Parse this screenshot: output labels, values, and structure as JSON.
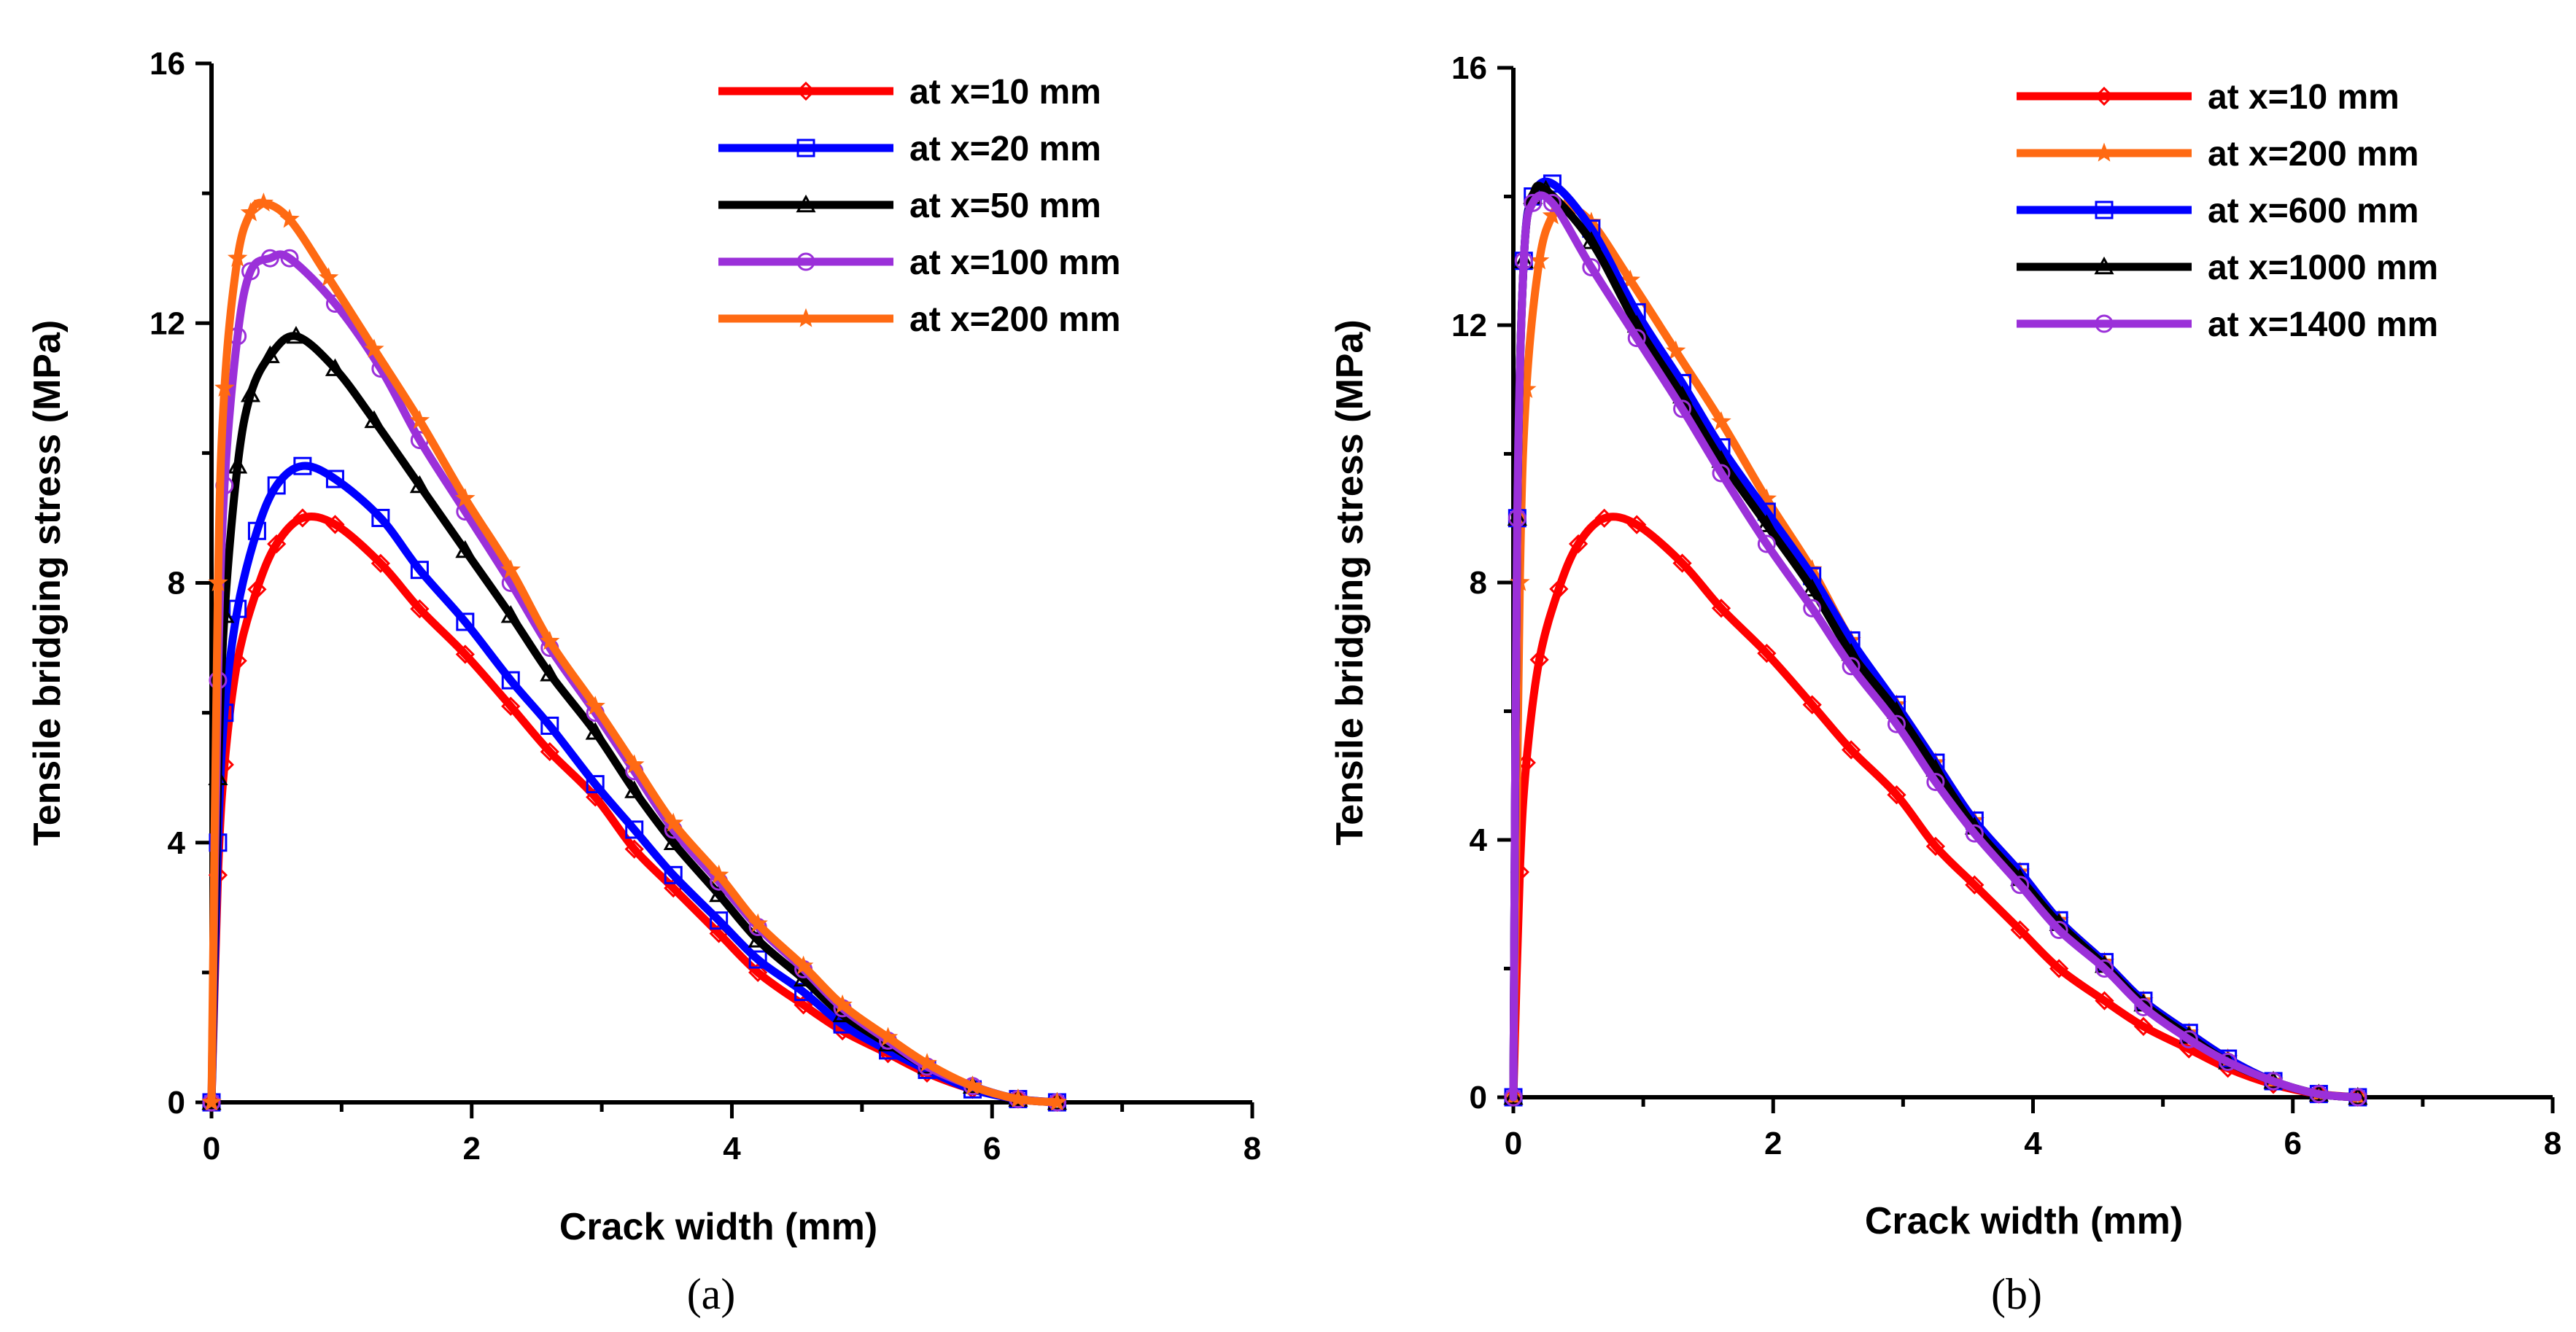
{
  "chart_data": [
    {
      "type": "line",
      "panel_label": "(a)",
      "xlabel": "Crack width (mm)",
      "ylabel": "Tensile bridging stress (MPa)",
      "xlim": [
        0,
        8
      ],
      "ylim": [
        0,
        16
      ],
      "xticks": [
        "0",
        "2",
        "4",
        "6",
        "8"
      ],
      "yticks": [
        "0",
        "4",
        "8",
        "12",
        "16"
      ],
      "legend_position": "top-right",
      "grid": false,
      "series": [
        {
          "name": "at x=10 mm",
          "color": "#ff0000",
          "marker": "diamond",
          "x": [
            0,
            0.05,
            0.1,
            0.2,
            0.35,
            0.5,
            0.7,
            0.95,
            1.3,
            1.6,
            1.95,
            2.3,
            2.6,
            2.95,
            3.25,
            3.55,
            3.9,
            4.2,
            4.55,
            4.85,
            5.2,
            5.5,
            5.85,
            6.2,
            6.5
          ],
          "y": [
            0,
            3.5,
            5.2,
            6.8,
            7.9,
            8.6,
            9.0,
            8.9,
            8.3,
            7.6,
            6.9,
            6.1,
            5.4,
            4.7,
            3.9,
            3.3,
            2.6,
            2.0,
            1.5,
            1.1,
            0.75,
            0.45,
            0.2,
            0.05,
            0
          ]
        },
        {
          "name": "at x=20 mm",
          "color": "#0000ff",
          "marker": "square",
          "x": [
            0,
            0.05,
            0.1,
            0.2,
            0.35,
            0.5,
            0.7,
            0.95,
            1.3,
            1.6,
            1.95,
            2.3,
            2.6,
            2.95,
            3.25,
            3.55,
            3.9,
            4.2,
            4.55,
            4.85,
            5.2,
            5.5,
            5.85,
            6.2,
            6.5
          ],
          "y": [
            0,
            4.0,
            6.0,
            7.6,
            8.8,
            9.5,
            9.8,
            9.6,
            9.0,
            8.2,
            7.4,
            6.5,
            5.8,
            4.9,
            4.2,
            3.5,
            2.8,
            2.2,
            1.7,
            1.2,
            0.8,
            0.5,
            0.2,
            0.05,
            0
          ]
        },
        {
          "name": "at x=50 mm",
          "color": "#000000",
          "marker": "triangle",
          "x": [
            0,
            0.05,
            0.1,
            0.2,
            0.3,
            0.45,
            0.65,
            0.95,
            1.25,
            1.6,
            1.95,
            2.3,
            2.6,
            2.95,
            3.25,
            3.55,
            3.9,
            4.2,
            4.55,
            4.85,
            5.2,
            5.5,
            5.85,
            6.2,
            6.5
          ],
          "y": [
            0,
            5.0,
            7.5,
            9.8,
            10.9,
            11.5,
            11.8,
            11.3,
            10.5,
            9.5,
            8.5,
            7.5,
            6.6,
            5.7,
            4.8,
            4.0,
            3.2,
            2.5,
            1.9,
            1.35,
            0.9,
            0.55,
            0.25,
            0.05,
            0
          ]
        },
        {
          "name": "at x=100 mm",
          "color": "#9b30d9",
          "marker": "circle",
          "x": [
            0,
            0.05,
            0.1,
            0.2,
            0.3,
            0.45,
            0.6,
            0.95,
            1.3,
            1.6,
            1.95,
            2.3,
            2.6,
            2.95,
            3.25,
            3.55,
            3.9,
            4.2,
            4.55,
            4.85,
            5.2,
            5.5,
            5.85,
            6.2,
            6.5
          ],
          "y": [
            0,
            6.5,
            9.5,
            11.8,
            12.8,
            13.0,
            13.0,
            12.3,
            11.3,
            10.2,
            9.1,
            8.0,
            7.0,
            6.0,
            5.1,
            4.2,
            3.4,
            2.7,
            2.05,
            1.45,
            0.95,
            0.55,
            0.25,
            0.05,
            0
          ]
        },
        {
          "name": "at x=200 mm",
          "color": "#ff6a13",
          "marker": "star",
          "x": [
            0,
            0.05,
            0.1,
            0.2,
            0.3,
            0.4,
            0.6,
            0.9,
            1.25,
            1.6,
            1.95,
            2.3,
            2.6,
            2.95,
            3.25,
            3.55,
            3.9,
            4.2,
            4.55,
            4.85,
            5.2,
            5.5,
            5.85,
            6.2,
            6.5
          ],
          "y": [
            0,
            8.0,
            11.0,
            13.0,
            13.7,
            13.85,
            13.6,
            12.7,
            11.6,
            10.5,
            9.3,
            8.2,
            7.1,
            6.1,
            5.2,
            4.3,
            3.5,
            2.75,
            2.1,
            1.5,
            1.0,
            0.6,
            0.25,
            0.05,
            0
          ]
        }
      ]
    },
    {
      "type": "line",
      "panel_label": "(b)",
      "xlabel": "Crack width (mm)",
      "ylabel": "Tensile bridging stress (MPa)",
      "xlim": [
        0,
        8
      ],
      "ylim": [
        0,
        16
      ],
      "xticks": [
        "0",
        "2",
        "4",
        "6",
        "8"
      ],
      "yticks": [
        "0",
        "4",
        "8",
        "12",
        "16"
      ],
      "legend_position": "top-right",
      "grid": false,
      "series": [
        {
          "name": "at x=10 mm",
          "color": "#ff0000",
          "marker": "diamond",
          "x": [
            0,
            0.05,
            0.1,
            0.2,
            0.35,
            0.5,
            0.7,
            0.95,
            1.3,
            1.6,
            1.95,
            2.3,
            2.6,
            2.95,
            3.25,
            3.55,
            3.9,
            4.2,
            4.55,
            4.85,
            5.2,
            5.5,
            5.85,
            6.2,
            6.5
          ],
          "y": [
            0,
            3.5,
            5.2,
            6.8,
            7.9,
            8.6,
            9.0,
            8.9,
            8.3,
            7.6,
            6.9,
            6.1,
            5.4,
            4.7,
            3.9,
            3.3,
            2.6,
            2.0,
            1.5,
            1.1,
            0.75,
            0.45,
            0.2,
            0.05,
            0
          ]
        },
        {
          "name": "at x=200 mm",
          "color": "#ff6a13",
          "marker": "star",
          "x": [
            0,
            0.05,
            0.1,
            0.2,
            0.3,
            0.4,
            0.6,
            0.9,
            1.25,
            1.6,
            1.95,
            2.3,
            2.6,
            2.95,
            3.25,
            3.55,
            3.9,
            4.2,
            4.55,
            4.85,
            5.2,
            5.5,
            5.85,
            6.2,
            6.5
          ],
          "y": [
            0,
            8.0,
            11.0,
            13.0,
            13.7,
            13.85,
            13.6,
            12.7,
            11.6,
            10.5,
            9.3,
            8.2,
            7.1,
            6.1,
            5.2,
            4.3,
            3.5,
            2.75,
            2.1,
            1.5,
            1.0,
            0.6,
            0.25,
            0.05,
            0
          ]
        },
        {
          "name": "at x=600 mm",
          "color": "#0000ff",
          "marker": "square",
          "x": [
            0,
            0.03,
            0.08,
            0.15,
            0.3,
            0.6,
            0.95,
            1.3,
            1.6,
            1.95,
            2.3,
            2.6,
            2.95,
            3.25,
            3.55,
            3.9,
            4.2,
            4.55,
            4.85,
            5.2,
            5.5,
            5.85,
            6.2,
            6.5
          ],
          "y": [
            0,
            9.0,
            13.0,
            14.0,
            14.2,
            13.5,
            12.2,
            11.1,
            10.1,
            9.1,
            8.1,
            7.1,
            6.1,
            5.2,
            4.3,
            3.5,
            2.75,
            2.1,
            1.5,
            1.0,
            0.6,
            0.25,
            0.05,
            0
          ]
        },
        {
          "name": "at x=1000 mm",
          "color": "#000000",
          "marker": "triangle",
          "x": [
            0,
            0.03,
            0.08,
            0.15,
            0.25,
            0.6,
            0.95,
            1.3,
            1.6,
            1.95,
            2.3,
            2.6,
            2.95,
            3.25,
            3.55,
            3.9,
            4.2,
            4.55,
            4.85,
            5.2,
            5.5,
            5.85,
            6.2,
            6.5
          ],
          "y": [
            0,
            9.0,
            13.0,
            14.0,
            14.1,
            13.3,
            12.0,
            10.9,
            9.9,
            8.9,
            7.9,
            6.9,
            6.0,
            5.1,
            4.2,
            3.4,
            2.7,
            2.05,
            1.45,
            0.95,
            0.55,
            0.25,
            0.05,
            0
          ]
        },
        {
          "name": "at x=1400 mm",
          "color": "#9b30d9",
          "marker": "circle",
          "x": [
            0,
            0.03,
            0.08,
            0.15,
            0.3,
            0.6,
            0.95,
            1.3,
            1.6,
            1.95,
            2.3,
            2.6,
            2.95,
            3.25,
            3.55,
            3.9,
            4.2,
            4.55,
            4.85,
            5.2,
            5.5,
            5.85,
            6.2,
            6.5
          ],
          "y": [
            0,
            9.0,
            13.0,
            13.9,
            13.9,
            12.9,
            11.8,
            10.7,
            9.7,
            8.6,
            7.6,
            6.7,
            5.8,
            4.9,
            4.1,
            3.3,
            2.6,
            2.0,
            1.4,
            0.9,
            0.55,
            0.25,
            0.05,
            0
          ]
        }
      ]
    }
  ]
}
